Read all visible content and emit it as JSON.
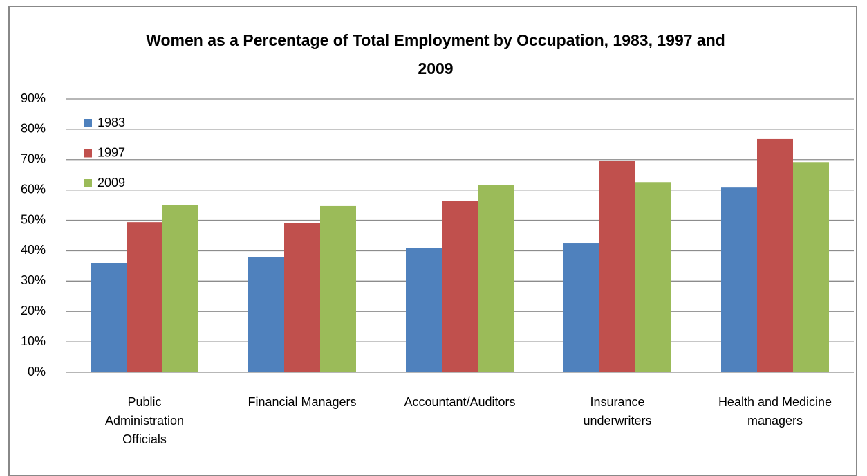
{
  "chart_data": {
    "type": "bar",
    "title": "Women as a Percentage of Total Employment by Occupation, 1983, 1997 and 2009",
    "categories": [
      "Public Administration Officials",
      "Financial Managers",
      "Accountant/Auditors",
      "Insurance underwriters",
      "Health and Medicine managers"
    ],
    "series": [
      {
        "name": "1983",
        "color": "#4f81bd",
        "values": [
          36.0,
          38.0,
          40.8,
          42.6,
          60.8
        ]
      },
      {
        "name": "1997",
        "color": "#c0504d",
        "values": [
          49.4,
          49.2,
          56.5,
          69.7,
          76.8
        ]
      },
      {
        "name": "2009",
        "color": "#9bbb59",
        "values": [
          55.1,
          54.7,
          61.7,
          62.6,
          69.2
        ]
      }
    ],
    "ylim": [
      0,
      90
    ],
    "yticks": [
      {
        "value": 0,
        "label": "0%"
      },
      {
        "value": 10,
        "label": "10%"
      },
      {
        "value": 20,
        "label": "20%"
      },
      {
        "value": 30,
        "label": "30%"
      },
      {
        "value": 40,
        "label": "40%"
      },
      {
        "value": 50,
        "label": "50%"
      },
      {
        "value": 60,
        "label": "60%"
      },
      {
        "value": 70,
        "label": "70%"
      },
      {
        "value": 80,
        "label": "80%"
      },
      {
        "value": 90,
        "label": "90%"
      }
    ],
    "grid": true,
    "legend": "upper left"
  }
}
